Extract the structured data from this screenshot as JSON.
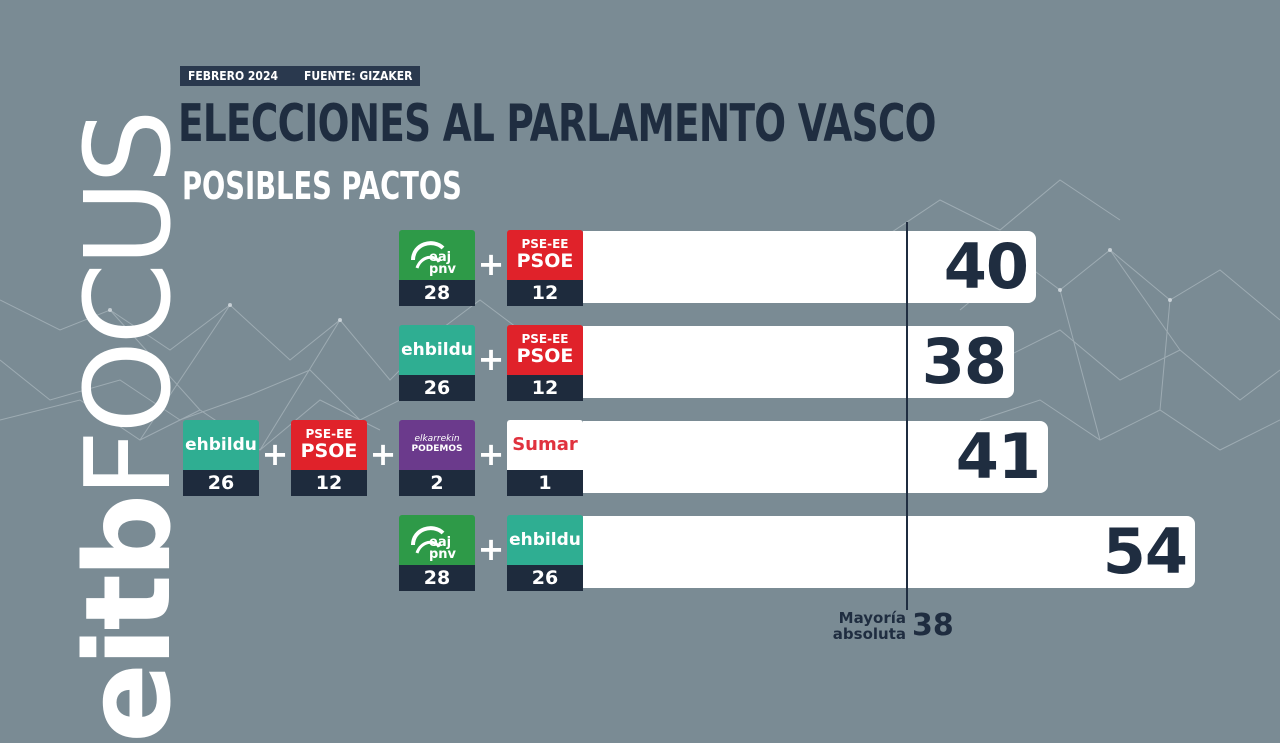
{
  "header": {
    "date": "FEBRERO 2024",
    "source": "FUENTE: GIZAKER",
    "title": "ELECCIONES AL PARLAMENTO VASCO",
    "subtitle": "POSIBLES PACTOS"
  },
  "brand": {
    "text_bold": "eitb",
    "text_regular": "FOCUS"
  },
  "colors": {
    "background": "#7a8b94",
    "navy": "#1f2d40",
    "bar": "#ffffff",
    "pnv": "#2e9a48",
    "psoe": "#e0222a",
    "bildu": "#2fae92",
    "podemos": "#6b3a8c",
    "sumar": "#e0323e"
  },
  "chart_data": {
    "type": "bar",
    "orientation": "horizontal",
    "xlim": [
      0,
      54
    ],
    "reference_line": {
      "label_line1": "Mayoría",
      "label_line2": "absoluta",
      "value": 38
    },
    "rows": [
      {
        "value": 40,
        "parties": [
          {
            "party": "pnv",
            "label_top": "eaj",
            "label_bottom": "pnv",
            "seats": 28
          },
          {
            "party": "psoe",
            "label_top": "PSE-EE",
            "label_bottom": "PSOE",
            "seats": 12
          }
        ]
      },
      {
        "value": 38,
        "parties": [
          {
            "party": "bildu",
            "label": "ehbildu",
            "seats": 26
          },
          {
            "party": "psoe",
            "label_top": "PSE-EE",
            "label_bottom": "PSOE",
            "seats": 12
          }
        ]
      },
      {
        "value": 41,
        "parties": [
          {
            "party": "bildu",
            "label": "ehbildu",
            "seats": 26
          },
          {
            "party": "psoe",
            "label_top": "PSE-EE",
            "label_bottom": "PSOE",
            "seats": 12
          },
          {
            "party": "podemos",
            "label_top": "elkarrekin",
            "label_bottom": "PODEMOS",
            "seats": 2
          },
          {
            "party": "sumar",
            "label": "Sumar",
            "seats": 1
          }
        ]
      },
      {
        "value": 54,
        "parties": [
          {
            "party": "pnv",
            "label_top": "eaj",
            "label_bottom": "pnv",
            "seats": 28
          },
          {
            "party": "bildu",
            "label": "ehbildu",
            "seats": 26
          }
        ]
      }
    ]
  }
}
